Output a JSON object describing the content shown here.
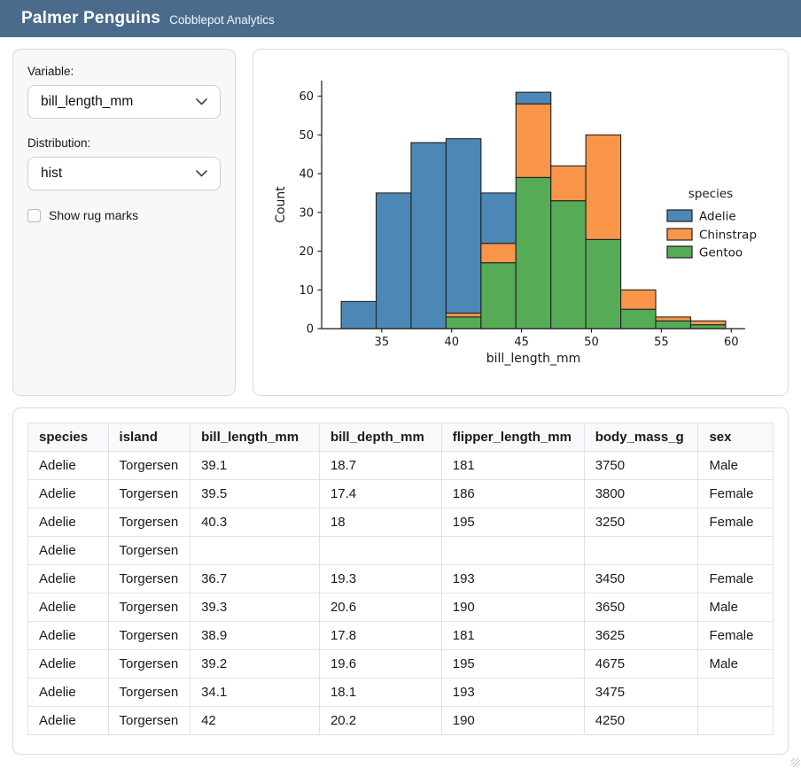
{
  "header": {
    "title": "Palmer Penguins",
    "subtitle": "Cobblepot Analytics",
    "bg_color": "#4a6b8c"
  },
  "sidebar": {
    "variable_label": "Variable:",
    "variable_value": "bill_length_mm",
    "distribution_label": "Distribution:",
    "distribution_value": "hist",
    "rug_label": "Show rug marks",
    "rug_checked": false
  },
  "chart_data": {
    "type": "bar",
    "subtype": "stacked-histogram",
    "xlabel": "bill_length_mm",
    "ylabel": "Count",
    "xlim": [
      30.7,
      61.0
    ],
    "ylim": [
      0,
      64
    ],
    "xticks": [
      35,
      40,
      45,
      50,
      55,
      60
    ],
    "yticks": [
      0,
      10,
      20,
      30,
      40,
      50,
      60
    ],
    "grid": false,
    "bin_edges": [
      32.1,
      34.6,
      37.1,
      39.6,
      42.1,
      44.6,
      47.1,
      49.6,
      52.1,
      54.6,
      57.1,
      59.6
    ],
    "legend_title": "species",
    "legend_position": "right",
    "series": [
      {
        "name": "Adelie",
        "color": "#4c87b5",
        "values": [
          7,
          35,
          48,
          45,
          13,
          3,
          0,
          0,
          0,
          0,
          0
        ]
      },
      {
        "name": "Chinstrap",
        "color": "#f9964a",
        "values": [
          0,
          0,
          0,
          1,
          5,
          19,
          9,
          27,
          5,
          1,
          1
        ]
      },
      {
        "name": "Gentoo",
        "color": "#56ab56",
        "values": [
          0,
          0,
          0,
          3,
          17,
          39,
          33,
          23,
          5,
          2,
          1
        ]
      }
    ],
    "stack_order": [
      "Gentoo",
      "Chinstrap",
      "Adelie"
    ],
    "edge_color": "#222222"
  },
  "table": {
    "columns": [
      "species",
      "island",
      "bill_length_mm",
      "bill_depth_mm",
      "flipper_length_mm",
      "body_mass_g",
      "sex"
    ],
    "rows": [
      [
        "Adelie",
        "Torgersen",
        "39.1",
        "18.7",
        "181",
        "3750",
        "Male"
      ],
      [
        "Adelie",
        "Torgersen",
        "39.5",
        "17.4",
        "186",
        "3800",
        "Female"
      ],
      [
        "Adelie",
        "Torgersen",
        "40.3",
        "18",
        "195",
        "3250",
        "Female"
      ],
      [
        "Adelie",
        "Torgersen",
        "",
        "",
        "",
        "",
        ""
      ],
      [
        "Adelie",
        "Torgersen",
        "36.7",
        "19.3",
        "193",
        "3450",
        "Female"
      ],
      [
        "Adelie",
        "Torgersen",
        "39.3",
        "20.6",
        "190",
        "3650",
        "Male"
      ],
      [
        "Adelie",
        "Torgersen",
        "38.9",
        "17.8",
        "181",
        "3625",
        "Female"
      ],
      [
        "Adelie",
        "Torgersen",
        "39.2",
        "19.6",
        "195",
        "4675",
        "Male"
      ],
      [
        "Adelie",
        "Torgersen",
        "34.1",
        "18.1",
        "193",
        "3475",
        ""
      ],
      [
        "Adelie",
        "Torgersen",
        "42",
        "20.2",
        "190",
        "4250",
        ""
      ]
    ]
  }
}
